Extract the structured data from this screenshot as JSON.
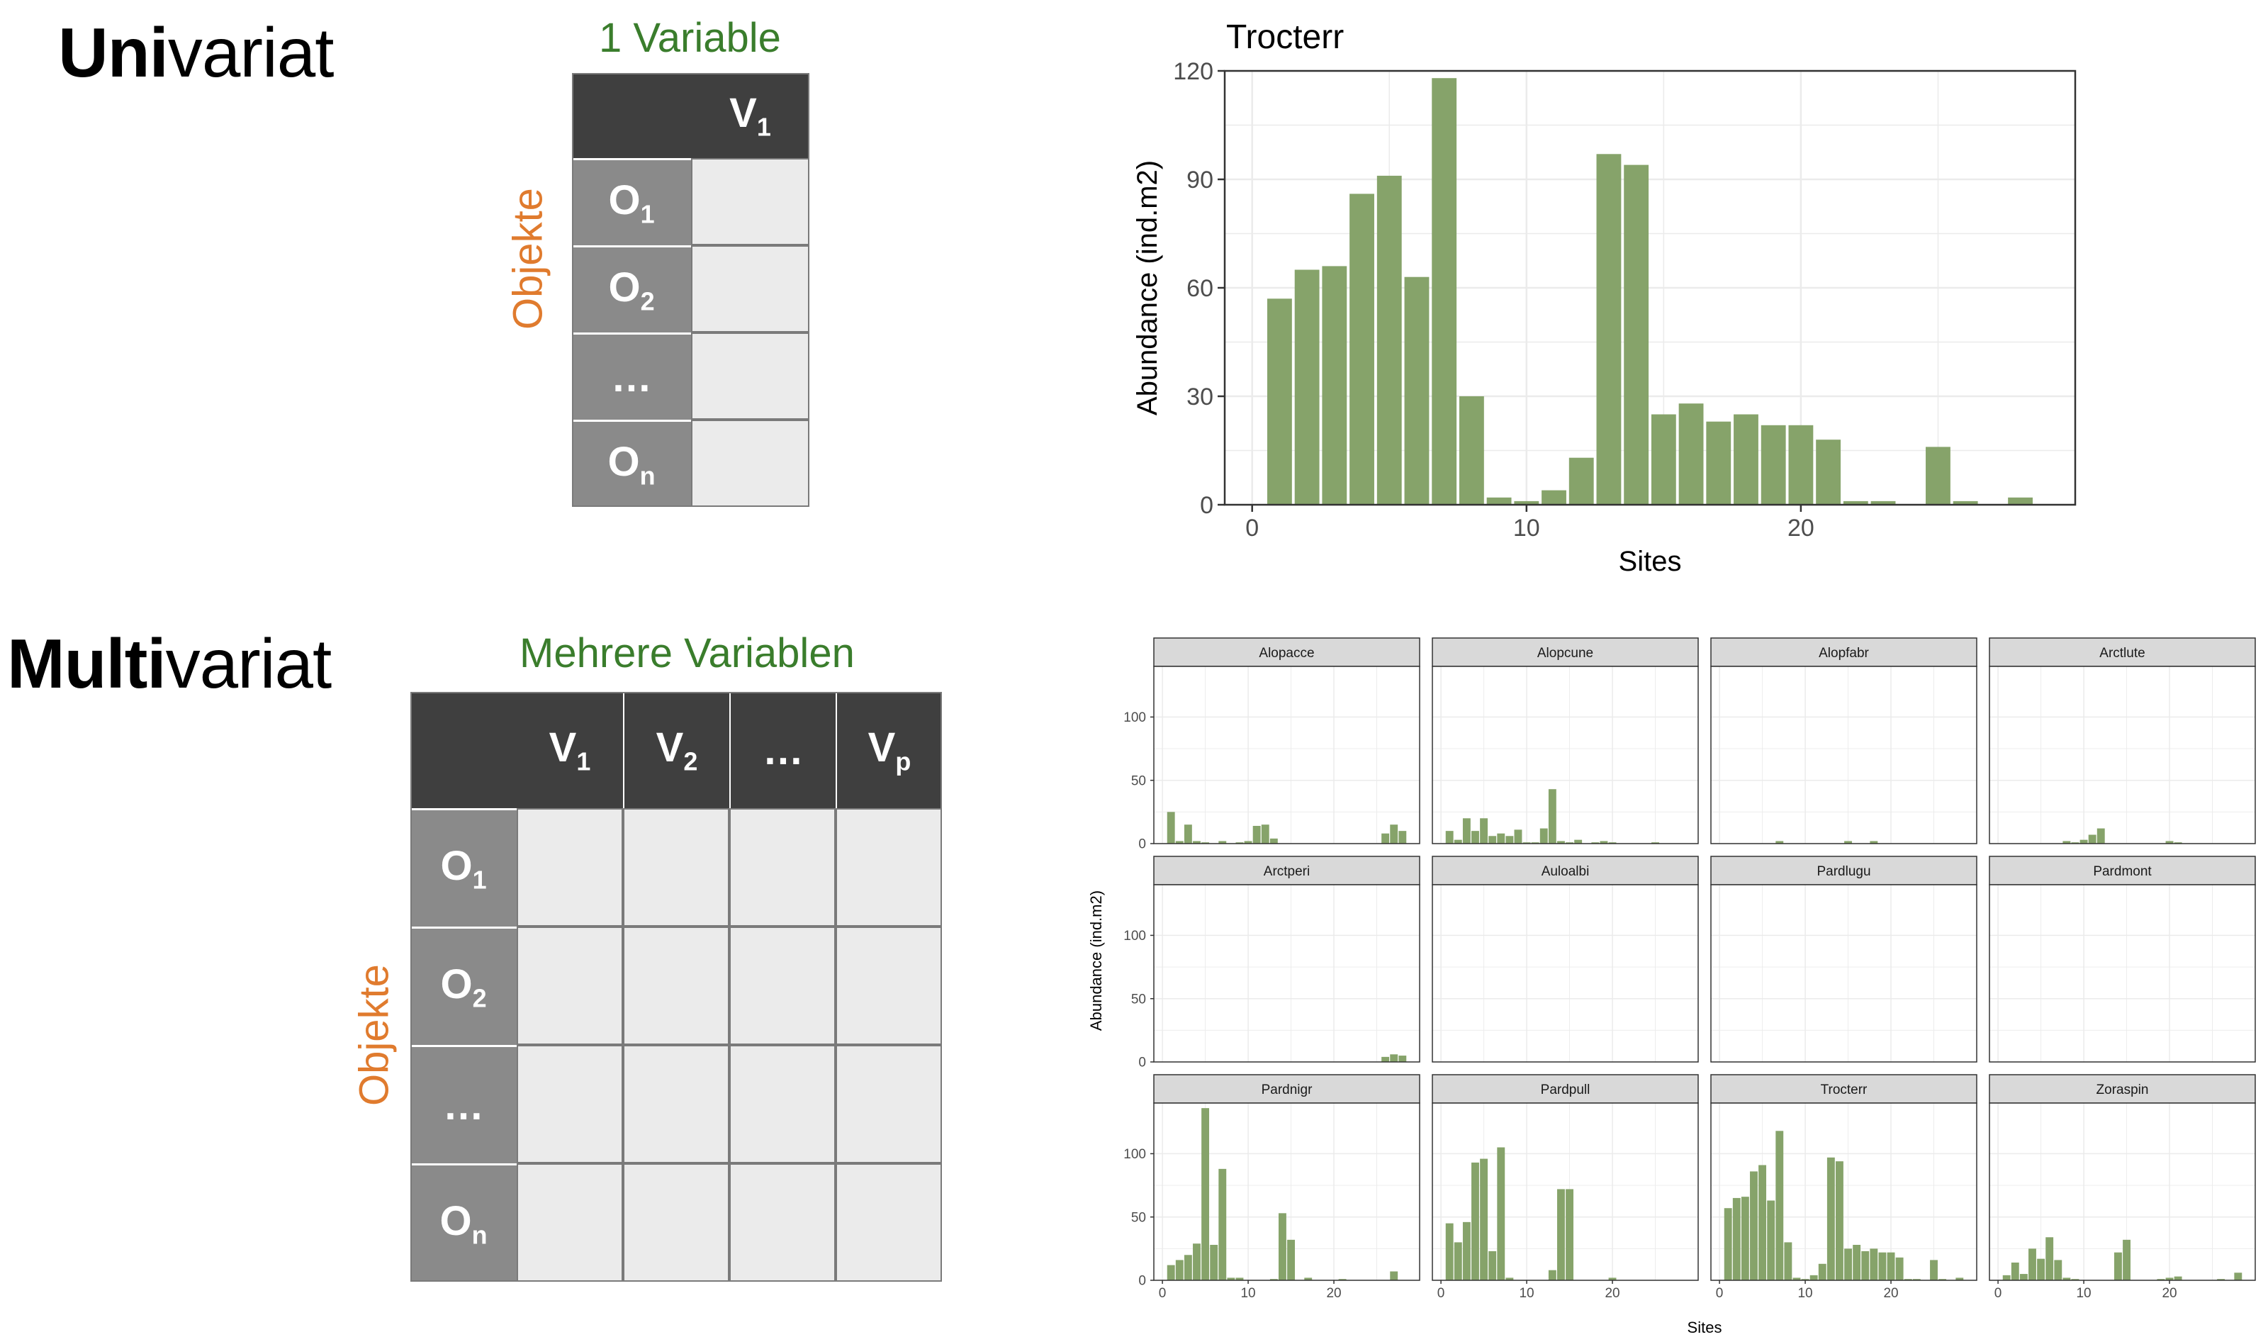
{
  "univariate": {
    "title_bold": "Uni",
    "title_rest": "variat",
    "variable_label": "1 Variable",
    "objects_label": "Objekte",
    "col_headers": [
      {
        "main": "V",
        "sub": "1"
      }
    ],
    "row_headers": [
      {
        "main": "O",
        "sub": "1"
      },
      {
        "main": "O",
        "sub": "2"
      },
      {
        "main": "…",
        "sub": ""
      },
      {
        "main": "O",
        "sub": "n"
      }
    ]
  },
  "multivariate": {
    "title_bold": "Multi",
    "title_rest": "variat",
    "variable_label": "Mehrere Variablen",
    "objects_label": "Objekte",
    "col_headers": [
      {
        "main": "V",
        "sub": "1"
      },
      {
        "main": "V",
        "sub": "2"
      },
      {
        "main": "…",
        "sub": ""
      },
      {
        "main": "V",
        "sub": "p"
      }
    ],
    "row_headers": [
      {
        "main": "O",
        "sub": "1"
      },
      {
        "main": "O",
        "sub": "2"
      },
      {
        "main": "…",
        "sub": ""
      },
      {
        "main": "O",
        "sub": "n"
      }
    ]
  },
  "colors": {
    "bar": "#86a36a",
    "panel_border": "#333333",
    "strip_fill": "#d9d9d9",
    "grid": "#ebebeb",
    "header": "#3f3f3f",
    "object": "#8a8a8a",
    "cell": "#ebebeb",
    "green_text": "#3a7d2c",
    "orange_text": "#e07b2e"
  },
  "chart_data": [
    {
      "type": "bar",
      "title": "Trocterr",
      "xlabel": "Sites",
      "ylabel": "Abundance (ind.m2)",
      "xlim": [
        -1,
        30
      ],
      "ylim": [
        0,
        120
      ],
      "xticks": [
        0,
        10,
        20
      ],
      "yticks": [
        0,
        30,
        60,
        90,
        120
      ],
      "grid": true,
      "x": [
        1,
        2,
        3,
        4,
        5,
        6,
        7,
        8,
        9,
        10,
        11,
        12,
        13,
        14,
        15,
        16,
        17,
        18,
        19,
        20,
        21,
        22,
        23,
        24,
        25,
        26,
        27,
        28
      ],
      "values": [
        57,
        65,
        66,
        86,
        91,
        63,
        118,
        30,
        2,
        1,
        4,
        13,
        97,
        94,
        25,
        28,
        23,
        25,
        22,
        22,
        18,
        1,
        1,
        0,
        16,
        1,
        0,
        2
      ]
    },
    {
      "type": "bar",
      "layout": "facet-grid",
      "xlabel": "Sites",
      "ylabel": "Abundance (ind.m2)",
      "xlim": [
        -1,
        30
      ],
      "ylim": [
        0,
        140
      ],
      "xticks": [
        0,
        10,
        20
      ],
      "yticks": [
        0,
        50,
        100
      ],
      "grid": true,
      "x": [
        1,
        2,
        3,
        4,
        5,
        6,
        7,
        8,
        9,
        10,
        11,
        12,
        13,
        14,
        15,
        16,
        17,
        18,
        19,
        20,
        21,
        22,
        23,
        24,
        25,
        26,
        27,
        28
      ],
      "series": [
        {
          "name": "Alopacce",
          "values": [
            25,
            2,
            15,
            2,
            1,
            0,
            2,
            0,
            1,
            2,
            14,
            15,
            4,
            0,
            0,
            0,
            0,
            0,
            0,
            0,
            0,
            0,
            0,
            0,
            0,
            8,
            15,
            10
          ]
        },
        {
          "name": "Alopcune",
          "values": [
            10,
            3,
            20,
            10,
            20,
            6,
            8,
            6,
            11,
            1,
            1,
            12,
            43,
            2,
            1,
            3,
            0,
            1,
            2,
            1,
            0,
            0,
            0,
            0,
            1,
            0,
            0,
            0
          ]
        },
        {
          "name": "Alopfabr",
          "values": [
            0,
            0,
            0,
            0,
            0,
            0,
            2,
            0,
            0,
            0,
            0,
            0,
            0,
            0,
            2,
            0,
            0,
            2,
            0,
            0,
            0,
            0,
            0,
            0,
            0,
            0,
            0,
            0
          ]
        },
        {
          "name": "Arctlute",
          "values": [
            0,
            0,
            0,
            0,
            0,
            0,
            0,
            2,
            1,
            3,
            7,
            12,
            0,
            0,
            0,
            0,
            0,
            0,
            0,
            2,
            1,
            0,
            0,
            0,
            0,
            0,
            0,
            0
          ]
        },
        {
          "name": "Arctperi",
          "values": [
            0,
            0,
            0,
            0,
            0,
            0,
            0,
            0,
            0,
            0,
            0,
            0,
            0,
            0,
            0,
            0,
            0,
            0,
            0,
            0,
            0,
            0,
            0,
            0,
            0,
            4,
            6,
            5
          ]
        },
        {
          "name": "Auloalbi",
          "values": [
            0,
            0,
            0,
            0,
            0,
            0,
            0,
            0,
            0,
            0,
            0,
            0,
            0,
            0,
            0,
            0,
            0,
            0,
            0,
            0,
            0,
            0,
            0,
            0,
            0,
            0,
            0,
            0
          ]
        },
        {
          "name": "Pardlugu",
          "values": [
            0,
            0,
            0,
            0,
            0,
            0,
            0,
            0,
            0,
            0,
            0,
            0,
            0,
            0,
            0,
            0,
            0,
            0,
            0,
            0,
            0,
            0,
            0,
            0,
            0,
            0,
            0,
            0
          ]
        },
        {
          "name": "Pardmont",
          "values": [
            0,
            0,
            0,
            0,
            0,
            0,
            0,
            0,
            0,
            0,
            0,
            0,
            0,
            0,
            0,
            0,
            0,
            0,
            0,
            0,
            0,
            0,
            0,
            0,
            0,
            0,
            0,
            0
          ]
        },
        {
          "name": "Pardnigr",
          "values": [
            12,
            16,
            20,
            29,
            136,
            28,
            88,
            2,
            2,
            0,
            0,
            0,
            1,
            53,
            32,
            0,
            2,
            0,
            0,
            0,
            1,
            0,
            0,
            0,
            0,
            0,
            7,
            0
          ]
        },
        {
          "name": "Pardpull",
          "values": [
            45,
            30,
            46,
            93,
            96,
            23,
            105,
            2,
            0,
            0,
            0,
            0,
            8,
            72,
            72,
            0,
            0,
            0,
            0,
            2,
            0,
            0,
            0,
            0,
            0,
            0,
            0,
            0
          ]
        },
        {
          "name": "Trocterr",
          "values": [
            57,
            65,
            66,
            86,
            91,
            63,
            118,
            30,
            2,
            1,
            4,
            13,
            97,
            94,
            25,
            28,
            23,
            25,
            22,
            22,
            18,
            1,
            1,
            0,
            16,
            1,
            0,
            2
          ]
        },
        {
          "name": "Zoraspin",
          "values": [
            4,
            14,
            5,
            25,
            17,
            34,
            16,
            2,
            1,
            0,
            0,
            0,
            0,
            22,
            32,
            0,
            0,
            0,
            1,
            2,
            3,
            0,
            0,
            0,
            0,
            1,
            0,
            6
          ]
        }
      ]
    }
  ]
}
